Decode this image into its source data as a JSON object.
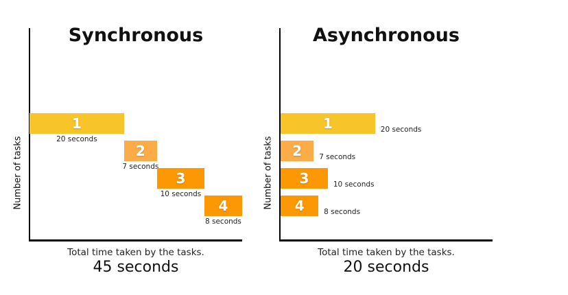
{
  "background": "#ffffff",
  "chart_data": [
    {
      "type": "bar",
      "orientation": "horizontal",
      "arrangement": "sequential-cascade",
      "title": "Synchronous",
      "ylabel": "Number of tasks",
      "xlabel": "Total time taken by the tasks.",
      "total_label": "45 seconds",
      "total_seconds": 45,
      "categories": [
        "1",
        "2",
        "3",
        "4"
      ],
      "values": [
        20,
        7,
        10,
        8
      ],
      "value_labels": [
        "20 seconds",
        "7 seconds",
        "10 seconds",
        "8 seconds"
      ],
      "bar_colors": [
        "#F7C42A",
        "#FBAC47",
        "#FC9803",
        "#FC9803"
      ],
      "axis_color": "#000000",
      "number_color": "#ffffff",
      "x_range_seconds": [
        0,
        45
      ],
      "grid": false,
      "legend": false
    },
    {
      "type": "bar",
      "orientation": "horizontal",
      "arrangement": "parallel-from-origin",
      "title": "Asynchronous",
      "ylabel": "Number of tasks",
      "xlabel": "Total time taken by the tasks.",
      "total_label": "20 seconds",
      "total_seconds": 20,
      "categories": [
        "1",
        "2",
        "3",
        "4"
      ],
      "values": [
        20,
        7,
        10,
        8
      ],
      "value_labels": [
        "20 seconds",
        "7 seconds",
        "10 seconds",
        "8 seconds"
      ],
      "bar_colors": [
        "#F7C42A",
        "#FBAC47",
        "#FC9803",
        "#FC9803"
      ],
      "axis_color": "#000000",
      "number_color": "#ffffff",
      "x_range_seconds": [
        0,
        45
      ],
      "grid": false,
      "legend": false
    }
  ]
}
